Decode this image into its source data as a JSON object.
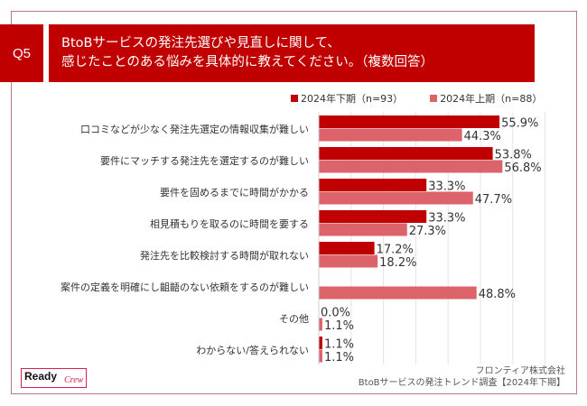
{
  "question_badge": "Q5",
  "title_lines": [
    "BtoBサービスの発注先選びや見直しに関して、",
    "感じたことのある悩みを具体的に教えてください。（複数回答）"
  ],
  "colors": {
    "accent": "#c00000",
    "series_2024H2": "#c00000",
    "series_2024H1": "#db6369",
    "frame": "#b97a82",
    "gridline": "#e3e3e3"
  },
  "chart_data": {
    "type": "bar",
    "orientation": "horizontal",
    "title": "BtoBサービスの発注先選びや見直しに関して、感じたことのある悩みを具体的に教えてください。（複数回答）",
    "xlabel": "",
    "ylabel": "",
    "xlim": [
      0,
      80
    ],
    "grid": true,
    "legend_position": "top-right",
    "value_suffix": "%",
    "categories": [
      "口コミなどが少なく発注先選定の情報収集が難しい",
      "要件にマッチする発注先を選定するのが難しい",
      "要件を固めるまでに時間がかかる",
      "相見積もりを取るのに時間を要する",
      "発注先を比較検討する時間が取れない",
      "案件の定義を明確にし齟齬のない依頼をするのが難しい",
      "その他",
      "わからない/答えられない"
    ],
    "series": [
      {
        "name": "2024年下期（n=93）",
        "color": "#c00000",
        "values": [
          55.9,
          53.8,
          33.3,
          33.3,
          17.2,
          null,
          0.0,
          1.1
        ],
        "labels": [
          "55.9%",
          "53.8%",
          "33.3%",
          "33.3%",
          "17.2%",
          null,
          "0.0%",
          "1.1%"
        ]
      },
      {
        "name": "2024年上期（n=88）",
        "color": "#db6369",
        "values": [
          44.3,
          56.8,
          47.7,
          27.3,
          18.2,
          48.8,
          1.1,
          1.1
        ],
        "labels": [
          "44.3%",
          "56.8%",
          "47.7%",
          "27.3%",
          "18.2%",
          "48.8%",
          "1.1%",
          "1.1%"
        ]
      }
    ]
  },
  "footer": {
    "company": "フロンティア株式会社",
    "survey": "BtoBサービスの発注トレンド調査【2024年下期】"
  },
  "logo": {
    "word1": "Ready",
    "word2": "Crew"
  }
}
